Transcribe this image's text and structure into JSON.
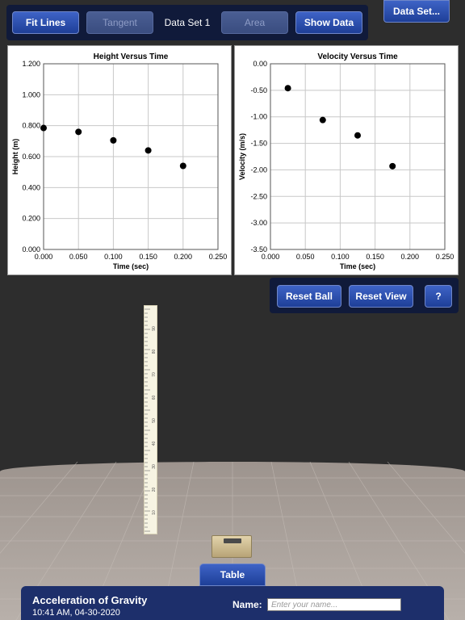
{
  "toolbar": {
    "fit_lines": "Fit Lines",
    "tangent": "Tangent",
    "data_set_label": "Data Set 1",
    "area": "Area",
    "show_data": "Show Data"
  },
  "data_set_button": "Data Set...",
  "controls": {
    "reset_ball": "Reset Ball",
    "reset_view": "Reset View",
    "help": "?"
  },
  "table_tab": "Table",
  "footer": {
    "title": "Acceleration of Gravity",
    "timestamp": "10:41 AM, 04-30-2020",
    "name_label": "Name:",
    "name_placeholder": "Enter your name..."
  },
  "ruler_labels": [
    "90",
    "80",
    "70",
    "60",
    "50",
    "40",
    "30",
    "20",
    "10"
  ],
  "chart_data": [
    {
      "type": "scatter",
      "title": "Height Versus Time",
      "xlabel": "Time (sec)",
      "ylabel": "Height (m)",
      "xlim": [
        0,
        0.25
      ],
      "ylim": [
        0,
        1.2
      ],
      "x_ticks": [
        "0.000",
        "0.050",
        "0.100",
        "0.150",
        "0.200",
        "0.250"
      ],
      "y_ticks": [
        "0.000",
        "0.200",
        "0.400",
        "0.600",
        "0.800",
        "1.000",
        "1.200"
      ],
      "points": [
        [
          0.0,
          0.785
        ],
        [
          0.05,
          0.76
        ],
        [
          0.1,
          0.705
        ],
        [
          0.15,
          0.64
        ],
        [
          0.2,
          0.54
        ]
      ],
      "grid": true
    },
    {
      "type": "scatter",
      "title": "Velocity Versus Time",
      "xlabel": "Time (sec)",
      "ylabel": "Velocity (m/s)",
      "xlim": [
        0,
        0.25
      ],
      "ylim": [
        -3.5,
        0
      ],
      "x_ticks": [
        "0.000",
        "0.050",
        "0.100",
        "0.150",
        "0.200",
        "0.250"
      ],
      "y_ticks": [
        "0.00",
        "-0.50",
        "-1.00",
        "-1.50",
        "-2.00",
        "-2.50",
        "-3.00",
        "-3.50"
      ],
      "points": [
        [
          0.025,
          -0.46
        ],
        [
          0.075,
          -1.06
        ],
        [
          0.125,
          -1.35
        ],
        [
          0.175,
          -1.93
        ]
      ],
      "grid": true
    }
  ]
}
